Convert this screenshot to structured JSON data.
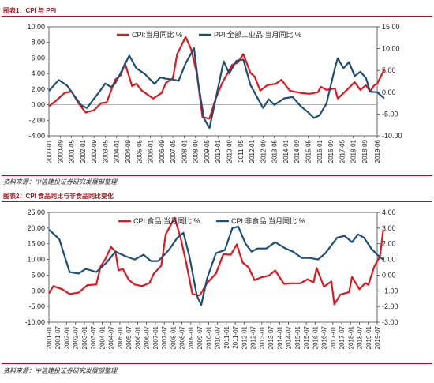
{
  "figure1": {
    "title": "图表1：CPI 与 PPI",
    "source": "资料来源：中信建投证券研究发展部整理"
  },
  "figure2": {
    "title": "图表2：CPI 食品同比与非食品同比变化",
    "source": "资料来源：中信建投证券研究发展部整理"
  },
  "colors": {
    "red": "#e8141c",
    "blue": "#1b4f7a",
    "rule": "#a01820"
  },
  "chart_data": [
    {
      "type": "line",
      "title": "",
      "x_tick_labels": [
        "2000-01",
        "2000-09",
        "2001-05",
        "2002-01",
        "2002-09",
        "2003-05",
        "2004-01",
        "2004-09",
        "2005-05",
        "2006-01",
        "2006-09",
        "2007-05",
        "2008-01",
        "2008-09",
        "2009-05",
        "2010-01",
        "2010-09",
        "2011-05",
        "2012-01",
        "2012-09",
        "2013-05",
        "2014-01",
        "2014-09",
        "2015-05",
        "2016-01",
        "2016-09",
        "2017-05",
        "2018-01",
        "2018-09",
        "2019-06"
      ],
      "y_left": {
        "ticks": [
          "-4.00",
          "-2.00",
          "0.00",
          "2.00",
          "4.00",
          "6.00",
          "8.00",
          "10.00"
        ],
        "min": -4,
        "max": 10
      },
      "y_right": {
        "ticks": [
          "-10.00",
          "-5.00",
          "0.00",
          "5.00",
          "10.00",
          "15.00"
        ],
        "min": -10,
        "max": 15
      },
      "legend_position": "top-center",
      "series": [
        {
          "name": "CPI:当月同比 %",
          "axis": "left",
          "color": "#e8141c",
          "points": [
            [
              "2000-01",
              -0.2
            ],
            [
              "2000-06",
              0.5
            ],
            [
              "2000-12",
              1.5
            ],
            [
              "2001-05",
              1.7
            ],
            [
              "2001-10",
              0.2
            ],
            [
              "2002-03",
              -1.0
            ],
            [
              "2002-09",
              -0.7
            ],
            [
              "2003-02",
              0.2
            ],
            [
              "2003-06",
              0.3
            ],
            [
              "2003-12",
              3.2
            ],
            [
              "2004-04",
              3.8
            ],
            [
              "2004-07",
              5.3
            ],
            [
              "2004-12",
              2.4
            ],
            [
              "2005-03",
              2.7
            ],
            [
              "2005-07",
              1.8
            ],
            [
              "2005-11",
              1.3
            ],
            [
              "2006-03",
              0.8
            ],
            [
              "2006-09",
              1.5
            ],
            [
              "2006-12",
              2.8
            ],
            [
              "2007-05",
              3.4
            ],
            [
              "2007-08",
              6.5
            ],
            [
              "2008-02",
              8.7
            ],
            [
              "2008-06",
              7.1
            ],
            [
              "2008-10",
              4.0
            ],
            [
              "2009-02",
              -1.6
            ],
            [
              "2009-07",
              -1.8
            ],
            [
              "2009-11",
              0.6
            ],
            [
              "2010-04",
              2.8
            ],
            [
              "2010-11",
              5.1
            ],
            [
              "2011-03",
              5.4
            ],
            [
              "2011-07",
              6.5
            ],
            [
              "2011-12",
              4.1
            ],
            [
              "2012-03",
              3.6
            ],
            [
              "2012-07",
              1.8
            ],
            [
              "2012-12",
              2.5
            ],
            [
              "2013-06",
              2.7
            ],
            [
              "2013-10",
              3.2
            ],
            [
              "2014-04",
              1.8
            ],
            [
              "2014-12",
              1.5
            ],
            [
              "2015-06",
              1.4
            ],
            [
              "2015-12",
              1.6
            ],
            [
              "2016-02",
              2.3
            ],
            [
              "2016-06",
              1.9
            ],
            [
              "2016-12",
              2.1
            ],
            [
              "2017-02",
              0.8
            ],
            [
              "2017-08",
              1.8
            ],
            [
              "2018-02",
              2.9
            ],
            [
              "2018-06",
              1.9
            ],
            [
              "2018-10",
              2.5
            ],
            [
              "2019-01",
              1.7
            ],
            [
              "2019-04",
              2.5
            ],
            [
              "2019-06",
              2.7
            ],
            [
              "2019-11",
              4.5
            ]
          ]
        },
        {
          "name": "PPI:全部工业品:当月同比 %",
          "axis": "right",
          "color": "#1b4f7a",
          "points": [
            [
              "2000-01",
              0.3
            ],
            [
              "2000-08",
              2.8
            ],
            [
              "2001-02",
              1.5
            ],
            [
              "2001-07",
              -0.8
            ],
            [
              "2001-12",
              -3.0
            ],
            [
              "2002-04",
              -3.6
            ],
            [
              "2002-09",
              -1.5
            ],
            [
              "2003-01",
              0.2
            ],
            [
              "2003-05",
              2.0
            ],
            [
              "2003-09",
              1.2
            ],
            [
              "2003-12",
              2.0
            ],
            [
              "2004-04",
              4.5
            ],
            [
              "2004-10",
              8.4
            ],
            [
              "2005-03",
              5.5
            ],
            [
              "2005-09",
              4.2
            ],
            [
              "2005-12",
              3.2
            ],
            [
              "2006-04",
              1.9
            ],
            [
              "2006-08",
              3.4
            ],
            [
              "2006-12",
              3.1
            ],
            [
              "2007-05",
              2.9
            ],
            [
              "2007-09",
              2.6
            ],
            [
              "2008-02",
              6.6
            ],
            [
              "2008-08",
              10.1
            ],
            [
              "2008-11",
              2.0
            ],
            [
              "2009-03",
              -6.0
            ],
            [
              "2009-07",
              -8.2
            ],
            [
              "2009-11",
              -2.1
            ],
            [
              "2010-05",
              7.1
            ],
            [
              "2010-09",
              4.3
            ],
            [
              "2011-02",
              7.2
            ],
            [
              "2011-07",
              7.5
            ],
            [
              "2011-12",
              1.7
            ],
            [
              "2012-04",
              -0.7
            ],
            [
              "2012-09",
              -3.6
            ],
            [
              "2013-01",
              -1.6
            ],
            [
              "2013-05",
              -2.9
            ],
            [
              "2013-12",
              -1.4
            ],
            [
              "2014-06",
              -1.1
            ],
            [
              "2014-12",
              -3.3
            ],
            [
              "2015-05",
              -4.6
            ],
            [
              "2015-09",
              -5.9
            ],
            [
              "2016-01",
              -5.3
            ],
            [
              "2016-06",
              -2.6
            ],
            [
              "2016-12",
              5.5
            ],
            [
              "2017-02",
              7.8
            ],
            [
              "2017-06",
              5.5
            ],
            [
              "2017-10",
              6.9
            ],
            [
              "2018-02",
              3.7
            ],
            [
              "2018-06",
              4.7
            ],
            [
              "2018-10",
              3.3
            ],
            [
              "2019-01",
              0.1
            ],
            [
              "2019-06",
              0.0
            ],
            [
              "2019-11",
              -1.4
            ]
          ]
        }
      ]
    },
    {
      "type": "line",
      "title": "",
      "x_tick_labels": [
        "2001-01",
        "2001-07",
        "2002-01",
        "2002-07",
        "2003-01",
        "2003-07",
        "2004-01",
        "2004-07",
        "2005-01",
        "2005-07",
        "2006-01",
        "2006-07",
        "2007-01",
        "2007-07",
        "2008-01",
        "2008-07",
        "2009-01",
        "2009-07",
        "2010-01",
        "2010-07",
        "2011-01",
        "2011-07",
        "2012-01",
        "2012-07",
        "2013-01",
        "2013-07",
        "2014-01",
        "2014-07",
        "2015-01",
        "2015-07",
        "2016-01",
        "2016-07",
        "2017-01",
        "2017-07",
        "2018-01",
        "2018-07",
        "2019-01",
        "2019-07"
      ],
      "y_left": {
        "ticks": [
          "-10.00",
          "-5.00",
          "0.00",
          "5.00",
          "10.00",
          "15.00",
          "20.00",
          "25.00"
        ],
        "min": -10,
        "max": 25
      },
      "y_right": {
        "ticks": [
          "-3.00",
          "-2.00",
          "-1.00",
          "0.00",
          "1.00",
          "2.00",
          "3.00",
          "4.00"
        ],
        "min": -3,
        "max": 4
      },
      "legend_position": "top-center",
      "series": [
        {
          "name": "CPI:食品:当月同比 %",
          "axis": "left",
          "color": "#e8141c",
          "points": [
            [
              "2001-01",
              -0.8
            ],
            [
              "2001-04",
              1.5
            ],
            [
              "2001-10",
              0.5
            ],
            [
              "2002-03",
              -1.0
            ],
            [
              "2002-09",
              -0.6
            ],
            [
              "2003-03",
              1.8
            ],
            [
              "2003-09",
              2.0
            ],
            [
              "2003-12",
              7.8
            ],
            [
              "2004-03",
              10.0
            ],
            [
              "2004-07",
              14.0
            ],
            [
              "2004-10",
              12.5
            ],
            [
              "2004-12",
              6.5
            ],
            [
              "2005-03",
              7.0
            ],
            [
              "2005-07",
              3.5
            ],
            [
              "2005-11",
              2.0
            ],
            [
              "2006-04",
              1.5
            ],
            [
              "2006-09",
              2.5
            ],
            [
              "2006-12",
              5.5
            ],
            [
              "2007-05",
              8.0
            ],
            [
              "2007-08",
              18.0
            ],
            [
              "2008-02",
              23.3
            ],
            [
              "2008-06",
              17.0
            ],
            [
              "2008-10",
              8.5
            ],
            [
              "2009-02",
              -1.0
            ],
            [
              "2009-07",
              -1.5
            ],
            [
              "2009-12",
              2.5
            ],
            [
              "2010-06",
              5.5
            ],
            [
              "2010-11",
              11.7
            ],
            [
              "2011-04",
              11.5
            ],
            [
              "2011-08",
              14.8
            ],
            [
              "2011-12",
              9.0
            ],
            [
              "2012-04",
              7.5
            ],
            [
              "2012-08",
              3.4
            ],
            [
              "2012-12",
              4.2
            ],
            [
              "2013-06",
              4.9
            ],
            [
              "2013-10",
              6.5
            ],
            [
              "2014-04",
              2.2
            ],
            [
              "2014-09",
              2.4
            ],
            [
              "2015-03",
              2.4
            ],
            [
              "2015-08",
              3.7
            ],
            [
              "2015-12",
              2.7
            ],
            [
              "2016-02",
              7.3
            ],
            [
              "2016-07",
              1.3
            ],
            [
              "2016-12",
              3.0
            ],
            [
              "2017-02",
              -4.3
            ],
            [
              "2017-06",
              -1.2
            ],
            [
              "2017-12",
              -0.4
            ],
            [
              "2018-02",
              4.4
            ],
            [
              "2018-07",
              0.5
            ],
            [
              "2018-11",
              2.5
            ],
            [
              "2019-01",
              1.9
            ],
            [
              "2019-05",
              7.7
            ],
            [
              "2019-09",
              11.2
            ],
            [
              "2019-11",
              19.1
            ]
          ]
        },
        {
          "name": "CPI:非食品:当月同比 %",
          "axis": "right",
          "color": "#1b4f7a",
          "points": [
            [
              "2001-01",
              2.9
            ],
            [
              "2001-08",
              2.3
            ],
            [
              "2002-03",
              0.2
            ],
            [
              "2002-09",
              0.1
            ],
            [
              "2003-02",
              0.4
            ],
            [
              "2003-09",
              0.2
            ],
            [
              "2004-04",
              0.8
            ],
            [
              "2004-10",
              1.5
            ],
            [
              "2005-05",
              1.2
            ],
            [
              "2005-11",
              1.0
            ],
            [
              "2006-05",
              1.3
            ],
            [
              "2006-10",
              0.9
            ],
            [
              "2007-03",
              0.9
            ],
            [
              "2007-10",
              1.6
            ],
            [
              "2008-04",
              2.4
            ],
            [
              "2008-08",
              2.7
            ],
            [
              "2008-12",
              1.2
            ],
            [
              "2009-05",
              -1.3
            ],
            [
              "2009-08",
              -1.9
            ],
            [
              "2009-12",
              -0.2
            ],
            [
              "2010-06",
              1.4
            ],
            [
              "2010-12",
              1.6
            ],
            [
              "2011-05",
              3.0
            ],
            [
              "2011-09",
              3.1
            ],
            [
              "2012-02",
              2.0
            ],
            [
              "2012-06",
              1.5
            ],
            [
              "2012-10",
              1.7
            ],
            [
              "2013-04",
              1.7
            ],
            [
              "2013-10",
              2.1
            ],
            [
              "2014-05",
              1.7
            ],
            [
              "2014-10",
              1.5
            ],
            [
              "2015-04",
              1.1
            ],
            [
              "2015-09",
              1.1
            ],
            [
              "2016-03",
              1.0
            ],
            [
              "2016-08",
              1.4
            ],
            [
              "2016-12",
              1.9
            ],
            [
              "2017-04",
              2.4
            ],
            [
              "2017-09",
              2.5
            ],
            [
              "2018-02",
              2.1
            ],
            [
              "2018-06",
              2.6
            ],
            [
              "2018-10",
              2.4
            ],
            [
              "2019-03",
              1.7
            ],
            [
              "2019-07",
              1.3
            ],
            [
              "2019-11",
              1.0
            ]
          ]
        }
      ]
    }
  ]
}
